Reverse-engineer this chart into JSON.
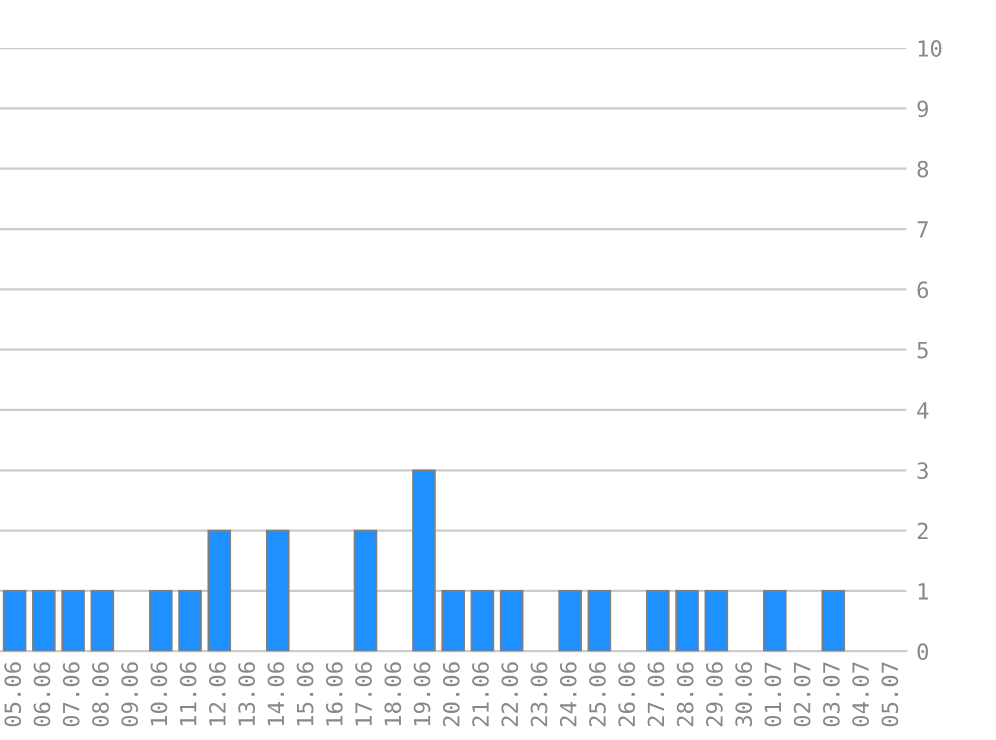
{
  "chart_data": {
    "type": "bar",
    "categories": [
      "05.06",
      "06.06",
      "07.06",
      "08.06",
      "09.06",
      "10.06",
      "11.06",
      "12.06",
      "13.06",
      "14.06",
      "15.06",
      "16.06",
      "17.06",
      "18.06",
      "19.06",
      "20.06",
      "21.06",
      "22.06",
      "23.06",
      "24.06",
      "25.06",
      "26.06",
      "27.06",
      "28.06",
      "29.06",
      "30.06",
      "01.07",
      "02.07",
      "03.07",
      "04.07",
      "05.07"
    ],
    "values": [
      1,
      1,
      1,
      1,
      0,
      1,
      1,
      2,
      0,
      2,
      0,
      0,
      2,
      0,
      3,
      1,
      1,
      1,
      0,
      1,
      1,
      0,
      1,
      1,
      1,
      0,
      1,
      0,
      1,
      0,
      0
    ],
    "color": "#1e90ff",
    "ylim": [
      0,
      10
    ],
    "yticks": [
      0,
      1,
      2,
      3,
      4,
      5,
      6,
      7,
      8,
      9,
      10
    ],
    "grid": "y"
  }
}
